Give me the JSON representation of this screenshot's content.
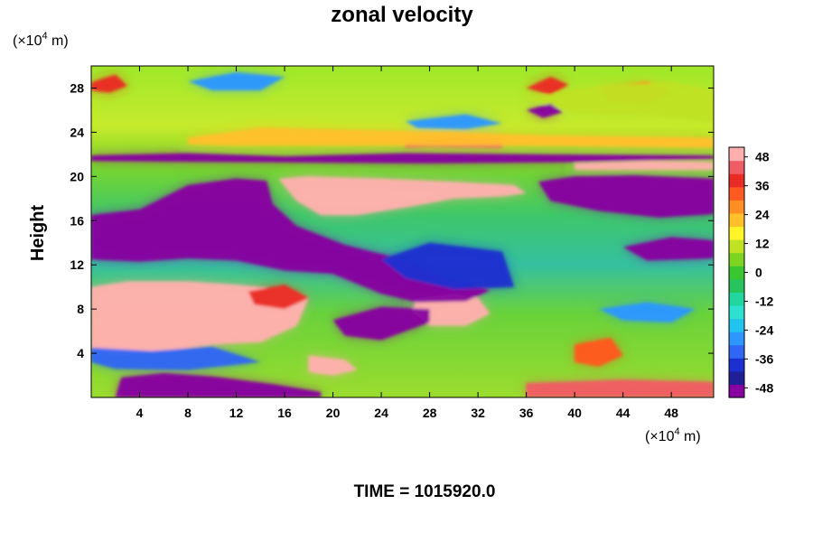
{
  "chart_data": {
    "type": "heatmap",
    "title": "zonal velocity",
    "ylabel": "Height",
    "x_unit": "(×10",
    "x_unit_exp": "4",
    "x_unit_end": " m)",
    "y_unit": "(×10",
    "y_unit_exp": "4",
    "y_unit_end": " m)",
    "xlim": [
      0,
      51.5
    ],
    "ylim": [
      0,
      30
    ],
    "x_ticks": [
      4,
      8,
      12,
      16,
      20,
      24,
      28,
      32,
      36,
      40,
      44,
      48
    ],
    "y_ticks": [
      4,
      8,
      12,
      16,
      20,
      24,
      28
    ],
    "colorbar": {
      "range": [
        -52,
        52
      ],
      "ticks": [
        48,
        36,
        24,
        12,
        0,
        -12,
        -24,
        -36,
        -48
      ],
      "colors": [
        "#8800a0",
        "#1f1f98",
        "#1c2fd0",
        "#2f66f3",
        "#2d97ff",
        "#22c3ef",
        "#2ee0d0",
        "#22d6a0",
        "#27c45d",
        "#39c630",
        "#7ed521",
        "#bfe224",
        "#fff329",
        "#ffc02a",
        "#ff8e24",
        "#ff5a1f",
        "#ea2a24",
        "#f05c64",
        "#ffb0ae"
      ]
    },
    "regions": [
      {
        "name": "pink-lower-left",
        "value": 52,
        "points": [
          [
            0,
            10
          ],
          [
            3,
            10.5
          ],
          [
            8,
            10.5
          ],
          [
            12,
            10.2
          ],
          [
            16,
            9.8
          ],
          [
            18,
            9
          ],
          [
            17,
            6.5
          ],
          [
            14,
            5
          ],
          [
            10,
            4.8
          ],
          [
            6,
            4.2
          ],
          [
            2,
            3.8
          ],
          [
            0,
            4.5
          ]
        ]
      },
      {
        "name": "pink-upper-middle",
        "value": 52,
        "points": [
          [
            15.5,
            19.8
          ],
          [
            18,
            20
          ],
          [
            24,
            19.8
          ],
          [
            30,
            19.5
          ],
          [
            35,
            19.2
          ],
          [
            36,
            18.5
          ],
          [
            34,
            18.2
          ],
          [
            30,
            18
          ],
          [
            26,
            17.2
          ],
          [
            22,
            16.5
          ],
          [
            19,
            16.5
          ],
          [
            17,
            17.8
          ]
        ]
      },
      {
        "name": "pink-lower-middle",
        "value": 50,
        "points": [
          [
            27,
            9
          ],
          [
            30,
            9.4
          ],
          [
            32,
            9
          ],
          [
            33,
            7.6
          ],
          [
            31,
            6.5
          ],
          [
            28,
            6.5
          ],
          [
            26.5,
            7.8
          ]
        ]
      },
      {
        "name": "pink-bottom",
        "value": 48,
        "points": [
          [
            18,
            3.8
          ],
          [
            21,
            3.4
          ],
          [
            22,
            2.5
          ],
          [
            20,
            2
          ],
          [
            18,
            2.3
          ]
        ]
      },
      {
        "name": "pink-band-right",
        "value": 50,
        "points": [
          [
            40,
            21.2
          ],
          [
            46,
            21.4
          ],
          [
            51.5,
            21.3
          ],
          [
            51.5,
            20.6
          ],
          [
            45,
            20.6
          ],
          [
            40,
            20.6
          ]
        ]
      },
      {
        "name": "pink-band-mid",
        "value": 46,
        "points": [
          [
            26,
            23.2
          ],
          [
            30,
            23.6
          ],
          [
            34,
            23.3
          ],
          [
            34,
            22.6
          ],
          [
            28,
            22.7
          ],
          [
            26,
            22.6
          ]
        ]
      },
      {
        "name": "pink-bottom-right",
        "value": 46,
        "points": [
          [
            36,
            1.3
          ],
          [
            44,
            1.6
          ],
          [
            51.5,
            1.4
          ],
          [
            51.5,
            0
          ],
          [
            36,
            0
          ]
        ]
      },
      {
        "name": "purple-left-upper",
        "value": -52,
        "points": [
          [
            0,
            16.5
          ],
          [
            4,
            17
          ],
          [
            8,
            19.2
          ],
          [
            12,
            19.8
          ],
          [
            14.5,
            19.6
          ],
          [
            15,
            17.5
          ],
          [
            17,
            15.5
          ],
          [
            21,
            13.8
          ],
          [
            25,
            12.7
          ],
          [
            30,
            10.5
          ],
          [
            33,
            9.7
          ],
          [
            31,
            8.7
          ],
          [
            27,
            8.6
          ],
          [
            24,
            9.4
          ],
          [
            20,
            11.2
          ],
          [
            16,
            11.5
          ],
          [
            12,
            12.4
          ],
          [
            8,
            12.6
          ],
          [
            4,
            12.3
          ],
          [
            0,
            12.5
          ]
        ]
      },
      {
        "name": "purple-right-upper",
        "value": -52,
        "points": [
          [
            37,
            19.5
          ],
          [
            40,
            20
          ],
          [
            45,
            20.1
          ],
          [
            51.5,
            19.8
          ],
          [
            51.5,
            16.6
          ],
          [
            47,
            16.3
          ],
          [
            42,
            16.9
          ],
          [
            38,
            17.8
          ]
        ]
      },
      {
        "name": "purple-right-mid",
        "value": -48,
        "points": [
          [
            44,
            13.6
          ],
          [
            48,
            14.5
          ],
          [
            51.5,
            14.2
          ],
          [
            51.5,
            12.6
          ],
          [
            46,
            12.4
          ]
        ]
      },
      {
        "name": "purple-bottom-left",
        "value": -52,
        "points": [
          [
            2,
            0
          ],
          [
            2.5,
            1.8
          ],
          [
            6,
            2.2
          ],
          [
            10,
            1.9
          ],
          [
            15,
            1.2
          ],
          [
            19,
            0.5
          ],
          [
            19,
            0
          ]
        ]
      },
      {
        "name": "purple-band",
        "value": -52,
        "points": [
          [
            0,
            21.9
          ],
          [
            8,
            22.1
          ],
          [
            16,
            21.8
          ],
          [
            26,
            22.1
          ],
          [
            36,
            22
          ],
          [
            51.5,
            21.9
          ],
          [
            51.5,
            21.6
          ],
          [
            40,
            21.3
          ],
          [
            28,
            21.2
          ],
          [
            12,
            21.3
          ],
          [
            0,
            21.4
          ]
        ]
      },
      {
        "name": "purple-center-low",
        "value": -48,
        "points": [
          [
            20,
            7
          ],
          [
            24,
            8.2
          ],
          [
            28,
            8
          ],
          [
            28,
            6.8
          ],
          [
            24,
            5.2
          ],
          [
            21,
            5.6
          ]
        ]
      },
      {
        "name": "blue-center",
        "value": -36,
        "points": [
          [
            24,
            12.5
          ],
          [
            28,
            14
          ],
          [
            34,
            13.2
          ],
          [
            35,
            10
          ],
          [
            30,
            9.8
          ],
          [
            26,
            10.8
          ]
        ]
      },
      {
        "name": "blue-left",
        "value": -34,
        "points": [
          [
            0,
            4.5
          ],
          [
            5,
            4.2
          ],
          [
            10,
            4.6
          ],
          [
            14,
            3.2
          ],
          [
            8,
            2.5
          ],
          [
            2,
            2.6
          ],
          [
            0,
            3.2
          ]
        ]
      },
      {
        "name": "blue-top-mid",
        "value": -30,
        "points": [
          [
            26,
            25
          ],
          [
            31,
            25.6
          ],
          [
            34,
            24.8
          ],
          [
            31,
            24.3
          ],
          [
            27,
            24.4
          ]
        ]
      },
      {
        "name": "blue-right-low",
        "value": -30,
        "points": [
          [
            42,
            8
          ],
          [
            46,
            8.6
          ],
          [
            50,
            8
          ],
          [
            48,
            6.8
          ],
          [
            44,
            7
          ]
        ]
      },
      {
        "name": "orange-top-band",
        "value": 24,
        "points": [
          [
            8,
            23.5
          ],
          [
            14,
            24.4
          ],
          [
            22,
            24.2
          ],
          [
            30,
            24
          ],
          [
            38,
            23.7
          ],
          [
            51.5,
            23.5
          ],
          [
            51.5,
            22.6
          ],
          [
            36,
            22.8
          ],
          [
            24,
            22.8
          ],
          [
            12,
            22.8
          ],
          [
            8,
            22.9
          ]
        ]
      },
      {
        "name": "red-lower-right",
        "value": 34,
        "points": [
          [
            40,
            4.8
          ],
          [
            43,
            5.4
          ],
          [
            44,
            3.8
          ],
          [
            42,
            2.8
          ],
          [
            40,
            3.2
          ]
        ]
      },
      {
        "name": "red-mid-left",
        "value": 36,
        "points": [
          [
            13,
            9.6
          ],
          [
            16,
            10.2
          ],
          [
            18,
            9
          ],
          [
            16,
            8
          ],
          [
            13.5,
            8.4
          ]
        ]
      },
      {
        "name": "orange-top-right",
        "value": 26,
        "points": [
          [
            42,
            28
          ],
          [
            46,
            28.6
          ],
          [
            48,
            27.6
          ],
          [
            46,
            26.6
          ],
          [
            43,
            26.8
          ]
        ]
      },
      {
        "name": "yellow-top-right",
        "value": 12,
        "points": [
          [
            36,
            27
          ],
          [
            42,
            28.2
          ],
          [
            48,
            28.5
          ],
          [
            51.5,
            27.8
          ],
          [
            51.5,
            25
          ],
          [
            46,
            25.6
          ],
          [
            40,
            25.8
          ]
        ]
      },
      {
        "name": "red-top-left",
        "value": 36,
        "points": [
          [
            0,
            28.5
          ],
          [
            2,
            29.2
          ],
          [
            3,
            28.2
          ],
          [
            1.5,
            27.6
          ],
          [
            0,
            27.8
          ]
        ]
      },
      {
        "name": "blue-top-left",
        "value": -26,
        "points": [
          [
            8,
            28.6
          ],
          [
            12,
            29.4
          ],
          [
            16,
            29
          ],
          [
            14,
            27.8
          ],
          [
            10,
            27.8
          ]
        ]
      },
      {
        "name": "red-spot-top",
        "value": 38,
        "points": [
          [
            36,
            28
          ],
          [
            38,
            29
          ],
          [
            39.5,
            28.3
          ],
          [
            38,
            27.4
          ]
        ]
      },
      {
        "name": "purple-spot-top",
        "value": -50,
        "points": [
          [
            36,
            26
          ],
          [
            38,
            26.6
          ],
          [
            39,
            25.8
          ],
          [
            37.4,
            25.3
          ]
        ]
      }
    ]
  },
  "time_label": "TIME = 1015920.0"
}
